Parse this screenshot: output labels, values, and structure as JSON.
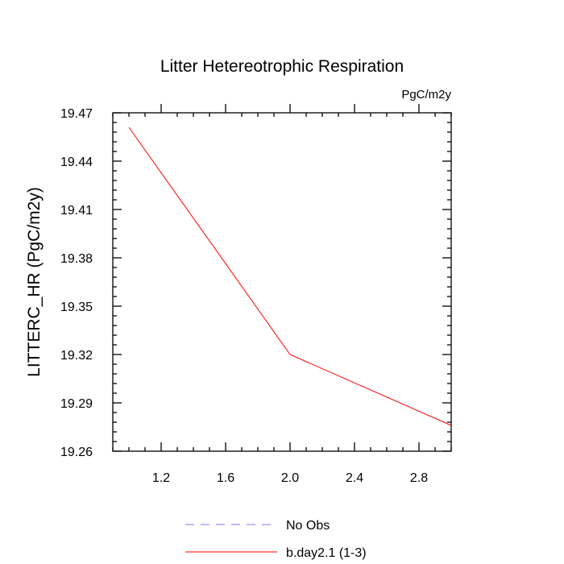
{
  "chart_data": {
    "type": "line",
    "title": "Litter Hetereotrophic Respiration",
    "units_label": "PgC/m2y",
    "xlabel": "",
    "ylabel": "LITTERC_HR  (PgC/m2y)",
    "xlim": [
      0.9,
      3.0
    ],
    "ylim": [
      19.26,
      19.47
    ],
    "x_major_ticks": [
      1.2,
      1.6,
      2.0,
      2.4,
      2.8
    ],
    "x_tick_labels": [
      "1.2",
      "1.6",
      "2.0",
      "2.4",
      "2.8"
    ],
    "x_minor_step": 0.1,
    "y_major_ticks": [
      19.26,
      19.29,
      19.32,
      19.35,
      19.38,
      19.41,
      19.44,
      19.47
    ],
    "y_tick_labels": [
      "19.26",
      "19.29",
      "19.32",
      "19.35",
      "19.38",
      "19.41",
      "19.44",
      "19.47"
    ],
    "y_minor_step": 0.006,
    "grid": false,
    "legend_position": "bottom",
    "series": [
      {
        "name": "b.day2.1 (1-3)",
        "x": [
          1,
          2,
          3
        ],
        "values": [
          19.461,
          19.32,
          19.276
        ],
        "color": "#ff0000",
        "style": "solid"
      }
    ],
    "legend": [
      {
        "label": "No Obs",
        "color": "#7b7bff",
        "style": "dashed"
      },
      {
        "label": "b.day2.1 (1-3)",
        "color": "#ff0000",
        "style": "solid"
      }
    ]
  }
}
